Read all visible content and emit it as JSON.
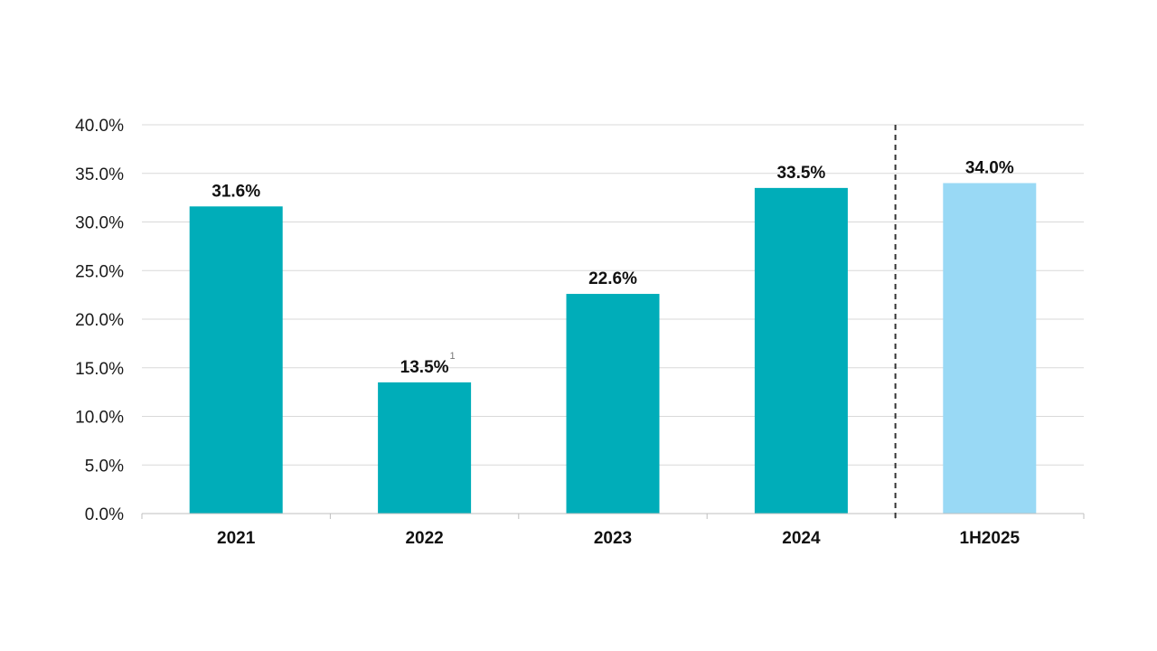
{
  "chart_data": {
    "type": "bar",
    "categories": [
      "2021",
      "2022",
      "2023",
      "2024",
      "1H2025"
    ],
    "values": [
      31.6,
      13.5,
      22.6,
      33.5,
      34.0
    ],
    "value_labels": [
      "31.6%",
      "13.5%",
      "22.6%",
      "33.5%",
      "34.0%"
    ],
    "footnotes": [
      "",
      "1",
      "",
      "",
      ""
    ],
    "bar_colors": [
      "#00adb9",
      "#00adb9",
      "#00adb9",
      "#00adb9",
      "#99d9f5"
    ],
    "ylim": [
      0,
      40
    ],
    "yticks": [
      0,
      5,
      10,
      15,
      20,
      25,
      30,
      35,
      40
    ],
    "ytick_labels": [
      "0.0%",
      "5.0%",
      "10.0%",
      "15.0%",
      "20.0%",
      "25.0%",
      "30.0%",
      "35.0%",
      "40.0%"
    ],
    "grid": true,
    "dashed_divider_between": [
      "2024",
      "1H2025"
    ],
    "title": "",
    "xlabel": "",
    "ylabel": ""
  }
}
